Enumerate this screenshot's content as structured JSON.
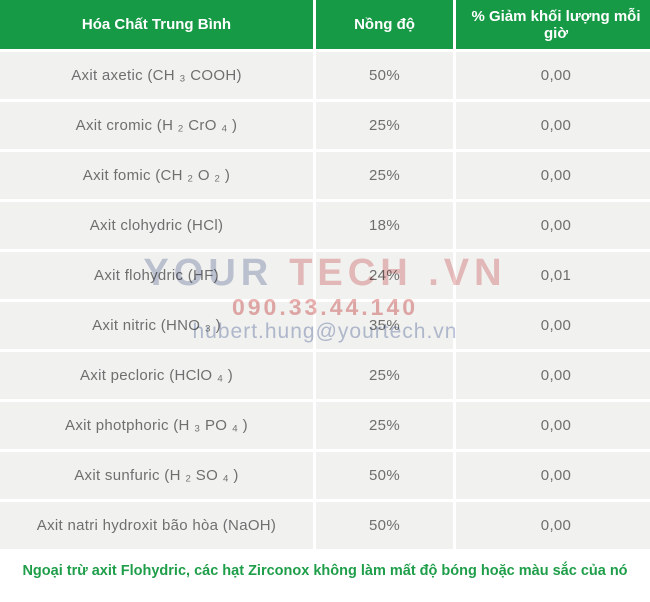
{
  "table": {
    "headers": {
      "chemical": "Hóa Chất Trung Bình",
      "concentration": "Nồng độ",
      "loss": "% Giảm khối lượng mỗi giờ"
    },
    "rows": [
      {
        "name": "Axit axetic (CH ₃ COOH)",
        "concentration": "50%",
        "loss": "0,00"
      },
      {
        "name": "Axit cromic (H ₂ CrO ₄ )",
        "concentration": "25%",
        "loss": "0,00"
      },
      {
        "name": "Axit fomic (CH ₂ O ₂ )",
        "concentration": "25%",
        "loss": "0,00"
      },
      {
        "name": "Axit clohydric (HCl)",
        "concentration": "18%",
        "loss": "0,00"
      },
      {
        "name": "Axit flohydric (HF)",
        "concentration": "24%",
        "loss": "0,01"
      },
      {
        "name": "Axit nitric (HNO ₃ )",
        "concentration": "35%",
        "loss": "0,00"
      },
      {
        "name": "Axit pecloric (HClO ₄ )",
        "concentration": "25%",
        "loss": "0,00"
      },
      {
        "name": "Axit photphoric (H ₃ PO ₄ )",
        "concentration": "25%",
        "loss": "0,00"
      },
      {
        "name": "Axit sunfuric (H ₂ SO ₄ )",
        "concentration": "50%",
        "loss": "0,00"
      },
      {
        "name": "Axit natri hydroxit bão hòa (NaOH)",
        "concentration": "50%",
        "loss": "0,00"
      }
    ]
  },
  "footer": {
    "note": "Ngoại trừ axit Flohydric, các hạt Zirconox không làm mất độ bóng hoặc màu sắc của nó"
  },
  "watermark": {
    "brand_part1": "YOUR",
    "brand_part2": "TECH .VN",
    "phone": "090.33.44.140",
    "email": "hubert.hung@yourtech.vn"
  },
  "colors": {
    "header_green": "#179a46",
    "footer_green": "#1f9e4a",
    "row_bg": "#f1f1ef",
    "body_text": "#6f6f6f",
    "watermark_blue": "#c6cbdd",
    "watermark_pink": "#eec3c3"
  }
}
